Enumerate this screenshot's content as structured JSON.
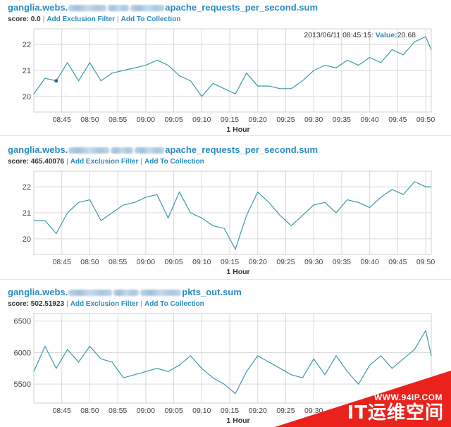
{
  "colors": {
    "link": "#2a8bbf",
    "series": "#3a9aa6",
    "grid": "#d9d9d9",
    "watermark": "#e9231c"
  },
  "panels": [
    {
      "title_prefix": "ganglia.webs.",
      "title_suffix": "apache_requests_per_second.sum",
      "score": "score: 0.0",
      "links": [
        "Add Exclusion Filter",
        "Add To Collection"
      ],
      "tooltip": {
        "text": "2013/06/11 08:45:15: ",
        "label": "Value:",
        "value": "20.68"
      },
      "xlabel": "1 Hour",
      "chart_data": {
        "type": "line",
        "x": [
          "08:40",
          "08:42",
          "08:44",
          "08:46",
          "08:48",
          "08:50",
          "08:52",
          "08:54",
          "08:56",
          "08:58",
          "09:00",
          "09:02",
          "09:04",
          "09:06",
          "09:08",
          "09:10",
          "09:12",
          "09:14",
          "09:16",
          "09:18",
          "09:20",
          "09:22",
          "09:24",
          "09:26",
          "09:28",
          "09:30",
          "09:32",
          "09:34",
          "09:36",
          "09:38",
          "09:40",
          "09:42",
          "09:44",
          "09:46",
          "09:48",
          "09:50",
          "09:51"
        ],
        "y": [
          20.1,
          20.7,
          20.6,
          21.3,
          20.6,
          21.3,
          20.6,
          20.9,
          21.0,
          21.1,
          21.2,
          21.4,
          21.2,
          20.8,
          20.6,
          20.0,
          20.5,
          20.3,
          20.1,
          20.9,
          20.4,
          20.4,
          20.3,
          20.3,
          20.6,
          21.0,
          21.2,
          21.1,
          21.4,
          21.2,
          21.5,
          21.3,
          21.8,
          21.6,
          22.1,
          22.3,
          21.8
        ],
        "yticks": [
          "20",
          "21",
          "22"
        ],
        "ylim": [
          19.4,
          22.6
        ],
        "xticks": [
          "08:45",
          "08:50",
          "08:55",
          "09:00",
          "09:05",
          "09:10",
          "09:15",
          "09:20",
          "09:25",
          "09:30",
          "09:35",
          "09:40",
          "09:45",
          "09:50"
        ],
        "xlabel": "1 Hour"
      }
    },
    {
      "title_prefix": "ganglia.webs.",
      "title_suffix": "apache_requests_per_second.sum",
      "score": "score: 465.40076",
      "links": [
        "Add Exclusion Filter",
        "Add To Collection"
      ],
      "xlabel": "1 Hour",
      "chart_data": {
        "type": "line",
        "x": [
          "08:40",
          "08:42",
          "08:44",
          "08:46",
          "08:48",
          "08:50",
          "08:52",
          "08:54",
          "08:56",
          "08:58",
          "09:00",
          "09:02",
          "09:04",
          "09:06",
          "09:08",
          "09:10",
          "09:12",
          "09:14",
          "09:16",
          "09:18",
          "09:20",
          "09:22",
          "09:24",
          "09:26",
          "09:28",
          "09:30",
          "09:32",
          "09:34",
          "09:36",
          "09:38",
          "09:40",
          "09:42",
          "09:44",
          "09:46",
          "09:48",
          "09:50",
          "09:51"
        ],
        "y": [
          20.7,
          20.7,
          20.2,
          21.0,
          21.4,
          21.5,
          20.7,
          21.0,
          21.3,
          21.4,
          21.6,
          21.7,
          20.8,
          21.8,
          21.0,
          20.8,
          20.5,
          20.4,
          19.6,
          20.9,
          21.8,
          21.4,
          20.9,
          20.5,
          20.9,
          21.3,
          21.4,
          21.0,
          21.5,
          21.4,
          21.2,
          21.6,
          21.9,
          21.7,
          22.2,
          22.0,
          22.0
        ],
        "yticks": [
          "20",
          "21",
          "22"
        ],
        "ylim": [
          19.4,
          22.6
        ],
        "xticks": [
          "08:45",
          "08:50",
          "08:55",
          "09:00",
          "09:05",
          "09:10",
          "09:15",
          "09:20",
          "09:25",
          "09:30",
          "09:35",
          "09:40",
          "09:45",
          "09:50"
        ],
        "xlabel": "1 Hour"
      }
    },
    {
      "title_prefix": "ganglia.webs.",
      "title_suffix": "pkts_out.sum",
      "score": "score: 502.51923",
      "links": [
        "Add Exclusion Filter",
        "Add To Collection"
      ],
      "xlabel": "1 Hour",
      "chart_data": {
        "type": "line",
        "x": [
          "08:40",
          "08:42",
          "08:44",
          "08:46",
          "08:48",
          "08:50",
          "08:52",
          "08:54",
          "08:56",
          "08:58",
          "09:00",
          "09:02",
          "09:04",
          "09:06",
          "09:08",
          "09:10",
          "09:12",
          "09:14",
          "09:16",
          "09:18",
          "09:20",
          "09:22",
          "09:24",
          "09:26",
          "09:28",
          "09:30",
          "09:32",
          "09:34",
          "09:36",
          "09:38",
          "09:40",
          "09:42",
          "09:44",
          "09:46",
          "09:48",
          "09:50",
          "09:51"
        ],
        "y": [
          5700,
          6100,
          5750,
          6050,
          5850,
          6100,
          5900,
          5850,
          5600,
          5650,
          5700,
          5750,
          5700,
          5800,
          5950,
          5750,
          5600,
          5500,
          5350,
          5700,
          5950,
          5850,
          5750,
          5650,
          5600,
          5900,
          5650,
          5950,
          5700,
          5500,
          5800,
          5950,
          5750,
          5900,
          6050,
          6350,
          5950
        ],
        "yticks": [
          "5500",
          "6000",
          "6500"
        ],
        "ylim": [
          5200,
          6620
        ],
        "xticks": [
          "08:45",
          "08:50",
          "08:55",
          "09:00",
          "09:05",
          "09:10",
          "09:15",
          "09:20",
          "09:25",
          "09:30"
        ],
        "xlabel": "1 Hour"
      }
    }
  ],
  "watermark": {
    "url": "WWW.94IP.COM",
    "text": "IT运维空间"
  }
}
